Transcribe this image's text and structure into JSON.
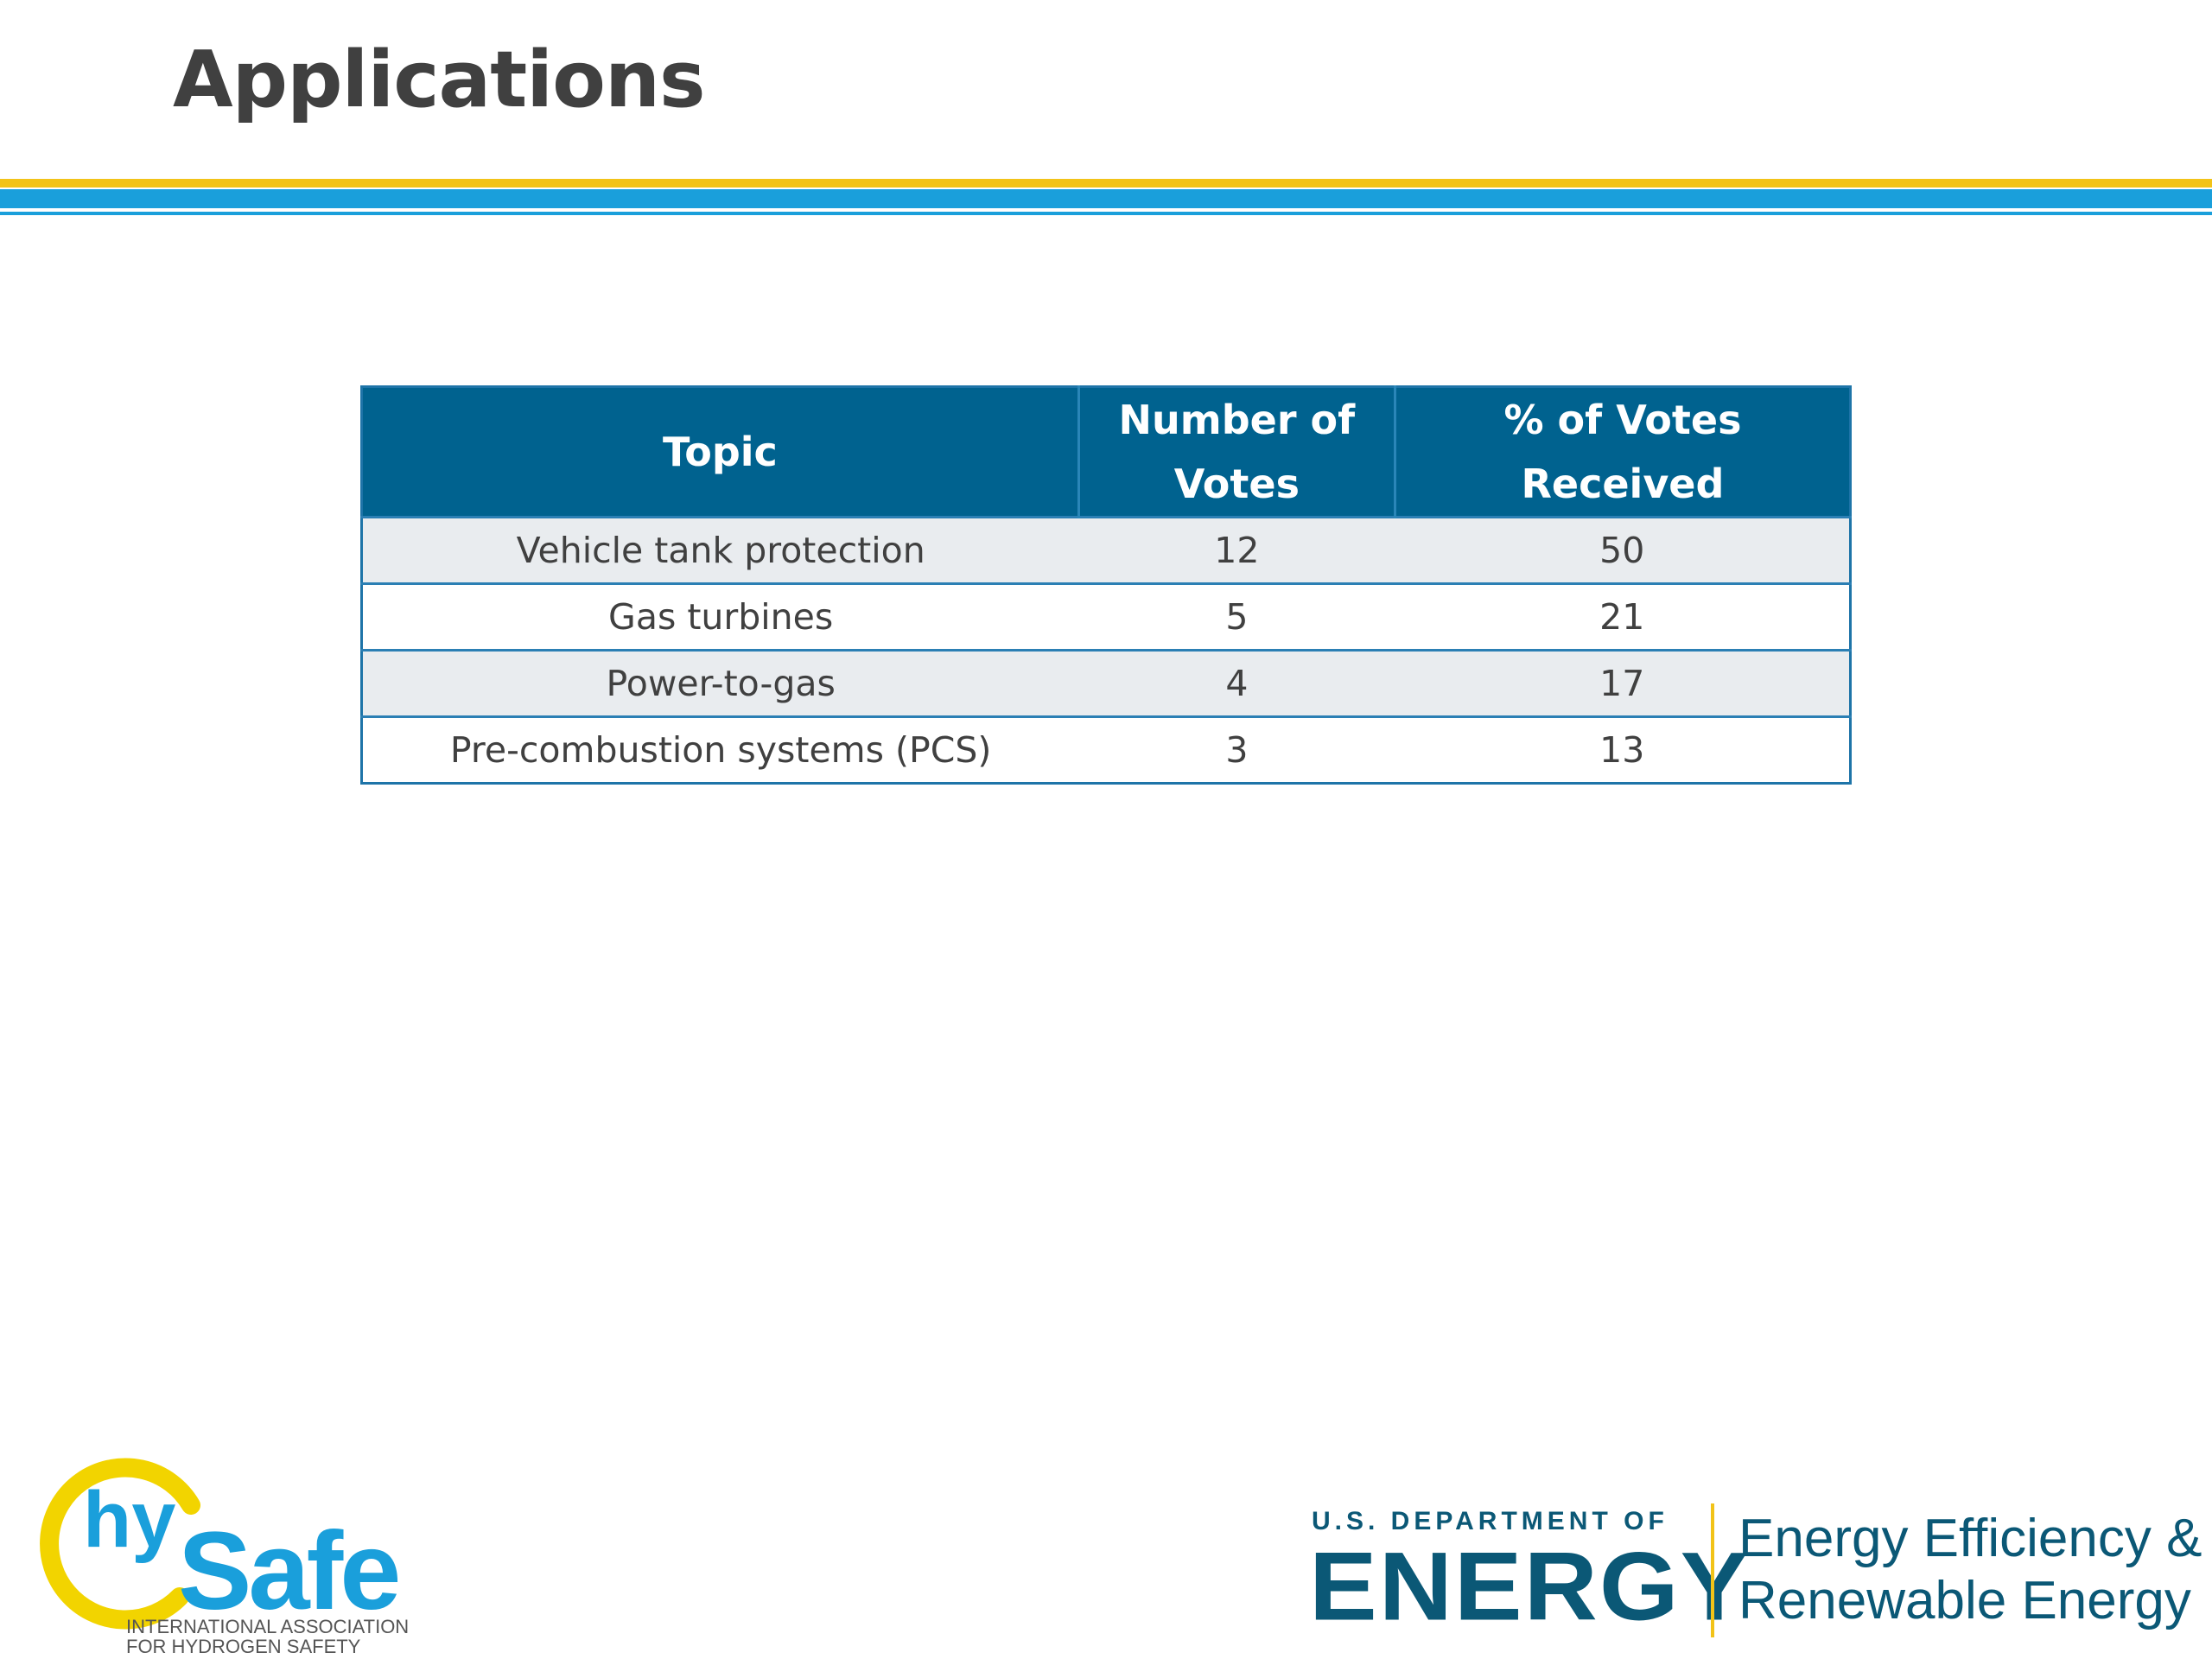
{
  "title": "Applications",
  "table": {
    "headers": {
      "topic": "Topic",
      "votes_line1": "Number of",
      "votes_line2": "Votes",
      "pct_line1": "% of Votes",
      "pct_line2": "Received"
    },
    "rows": [
      {
        "topic": "Vehicle tank protection",
        "votes": "12",
        "pct": "50"
      },
      {
        "topic": "Gas turbines",
        "votes": "5",
        "pct": "21"
      },
      {
        "topic": "Power-to-gas",
        "votes": "4",
        "pct": "17"
      },
      {
        "topic": "Pre-combustion systems (PCS)",
        "votes": "3",
        "pct": "13"
      }
    ]
  },
  "logos": {
    "hysafe": {
      "hy": "hy",
      "safe": "Safe",
      "line1": "INTERNATIONAL ASSOCIATION",
      "line2": "FOR HYDROGEN SAFETY"
    },
    "doe": {
      "dept": "U.S. DEPARTMENT OF",
      "energy": "ENERGY",
      "eere_line1": "Energy Efficiency &",
      "eere_line2": "Renewable Energy"
    }
  },
  "colors": {
    "header_bg": "#00628f",
    "accent_yellow": "#f2c318",
    "accent_blue": "#1a9fdb",
    "doe_navy": "#0b5876"
  }
}
